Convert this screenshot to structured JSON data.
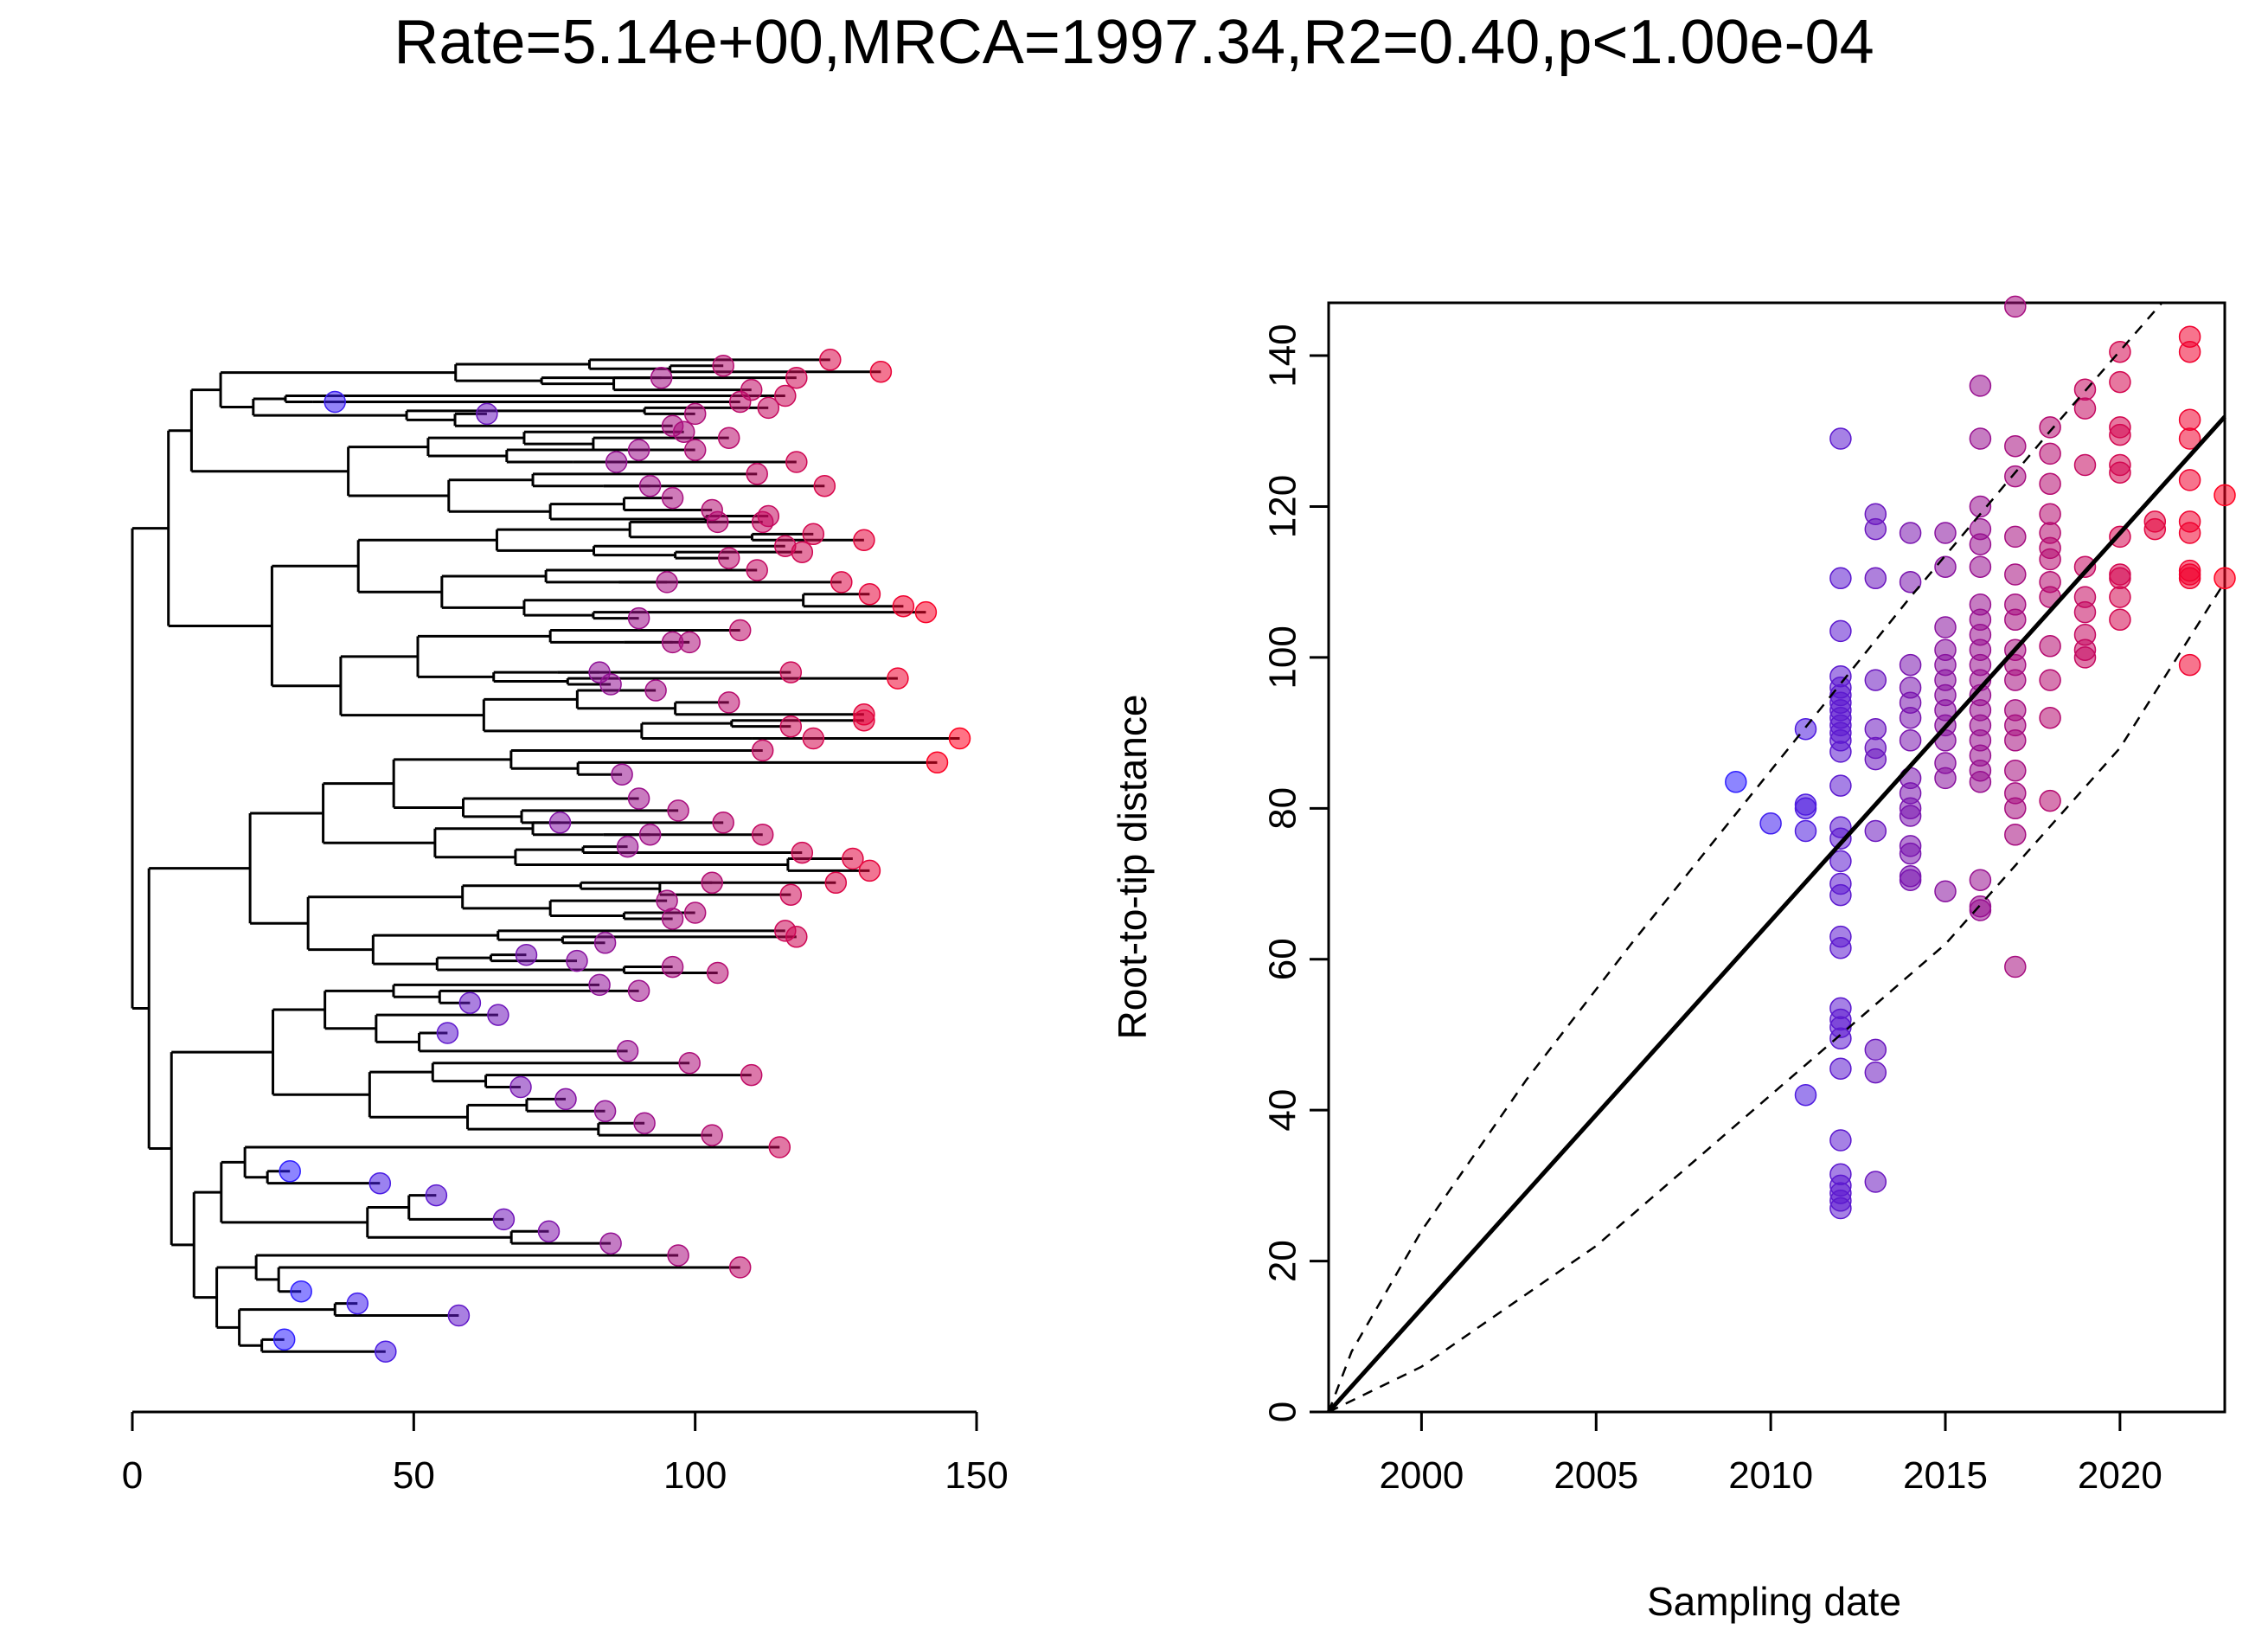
{
  "title": "Rate=5.14e+00,MRCA=1997.34,R2=0.40,p<1.00e-04",
  "colors": {
    "early": "#3020ff",
    "late": "#ff0020",
    "axis": "#000000"
  },
  "chart_data": [
    {
      "type": "tree",
      "xlabel": "",
      "ylabel": "",
      "xlim": [
        0,
        150
      ],
      "xticks": [
        "0",
        "50",
        "100",
        "150"
      ],
      "xtick_values": [
        0,
        50,
        100,
        150
      ],
      "tips": [
        [
          100,
          0.12
        ],
        [
          116,
          0.09
        ],
        [
          118,
          0.06
        ],
        [
          108,
          0.1
        ],
        [
          96,
          0.14
        ],
        [
          105,
          0.04
        ],
        [
          110,
          0.08
        ],
        [
          124,
          0.03
        ],
        [
          113,
          0.11
        ],
        [
          98,
          0.15
        ],
        [
          94,
          0.06
        ],
        [
          90,
          0.18
        ],
        [
          106,
          0.16
        ],
        [
          133,
          0.05
        ],
        [
          36,
          0.1
        ],
        [
          63,
          0.12
        ],
        [
          86,
          0.2
        ],
        [
          100,
          0.18
        ],
        [
          111,
          0.22
        ],
        [
          118,
          0.2
        ],
        [
          123,
          0.24
        ],
        [
          92,
          0.24
        ],
        [
          96,
          0.26
        ],
        [
          103,
          0.28
        ],
        [
          112,
          0.3
        ],
        [
          121,
          0.32
        ],
        [
          104,
          0.3
        ],
        [
          113,
          0.29
        ],
        [
          130,
          0.33
        ],
        [
          119,
          0.35
        ],
        [
          95,
          0.4
        ],
        [
          106,
          0.36
        ],
        [
          111,
          0.38
        ],
        [
          116,
          0.34
        ],
        [
          126,
          0.4
        ],
        [
          131,
          0.42
        ],
        [
          137,
          0.44
        ],
        [
          141,
          0.45
        ],
        [
          90,
          0.46
        ],
        [
          108,
          0.48
        ],
        [
          99,
          0.5
        ],
        [
          83,
          0.55
        ],
        [
          96,
          0.5
        ],
        [
          117,
          0.55
        ],
        [
          136,
          0.56
        ],
        [
          85,
          0.57
        ],
        [
          130,
          0.62
        ],
        [
          143,
          0.7
        ],
        [
          147,
          0.66
        ],
        [
          112,
          0.68
        ],
        [
          106,
          0.6
        ],
        [
          117,
          0.64
        ],
        [
          121,
          0.66
        ],
        [
          130,
          0.63
        ],
        [
          93,
          0.58
        ],
        [
          87,
          0.72
        ],
        [
          90,
          0.76
        ],
        [
          76,
          0.8
        ],
        [
          97,
          0.78
        ],
        [
          105,
          0.8
        ],
        [
          112,
          0.82
        ],
        [
          88,
          0.84
        ],
        [
          92,
          0.82
        ],
        [
          119,
          0.85
        ],
        [
          128,
          0.86
        ],
        [
          131,
          0.88
        ],
        [
          125,
          0.9
        ],
        [
          117,
          0.92
        ],
        [
          103,
          0.9
        ],
        [
          95,
          0.93
        ],
        [
          96,
          0.96
        ],
        [
          100,
          0.95
        ],
        [
          116,
          0.98
        ],
        [
          118,
          0.99
        ],
        [
          84,
          1.0
        ],
        [
          70,
          1.02
        ],
        [
          79,
          1.03
        ],
        [
          96,
          1.04
        ],
        [
          104,
          1.05
        ],
        [
          83,
          1.07
        ],
        [
          90,
          1.08
        ],
        [
          60,
          1.1
        ],
        [
          65,
          1.12
        ],
        [
          56,
          1.15
        ],
        [
          88,
          1.18
        ],
        [
          99,
          1.2
        ],
        [
          110,
          1.22
        ],
        [
          69,
          1.24
        ],
        [
          77,
          1.26
        ],
        [
          84,
          1.28
        ],
        [
          91,
          1.3
        ],
        [
          103,
          1.32
        ],
        [
          115,
          1.34
        ],
        [
          28,
          1.38
        ],
        [
          44,
          1.4
        ],
        [
          54,
          1.42
        ],
        [
          66,
          1.46
        ],
        [
          74,
          1.48
        ],
        [
          85,
          1.5
        ],
        [
          97,
          1.52
        ],
        [
          108,
          1.54
        ],
        [
          30,
          1.58
        ],
        [
          40,
          1.6
        ],
        [
          58,
          1.62
        ],
        [
          27,
          1.66
        ],
        [
          45,
          1.68
        ]
      ]
    },
    {
      "type": "scatter",
      "xlabel": "Sampling date",
      "ylabel": "Root-to-tip distance",
      "xlim": [
        1997.34,
        2023
      ],
      "ylim": [
        0,
        147
      ],
      "xticks": [
        "2000",
        "2005",
        "2010",
        "2015",
        "2020"
      ],
      "xtick_values": [
        2000,
        2005,
        2010,
        2015,
        2020
      ],
      "yticks": [
        "0",
        "20",
        "40",
        "60",
        "80",
        "100",
        "120",
        "140"
      ],
      "ytick_values": [
        0,
        20,
        40,
        60,
        80,
        100,
        120,
        140
      ],
      "regression": {
        "rate": 5.14,
        "mrca": 1997.34,
        "x": [
          1997.34,
          2023
        ],
        "y": [
          0,
          131.9
        ]
      },
      "prediction_bands": {
        "upper": {
          "x": [
            1997.34,
            1998,
            2000,
            2003,
            2006,
            2010,
            2014,
            2018,
            2021.2
          ],
          "y": [
            0,
            8,
            24,
            44,
            62,
            85,
            108,
            130,
            147
          ]
        },
        "lower": {
          "x": [
            1997.34,
            2000,
            2005,
            2010,
            2015,
            2020,
            2023
          ],
          "y": [
            0,
            6,
            22,
            42,
            62,
            88,
            110
          ]
        }
      },
      "points": [
        [
          2009,
          83.5
        ],
        [
          2010,
          78
        ],
        [
          2011,
          90.5
        ],
        [
          2011,
          80.5
        ],
        [
          2011,
          80
        ],
        [
          2011,
          77
        ],
        [
          2011,
          42
        ],
        [
          2012,
          129
        ],
        [
          2012,
          110.5
        ],
        [
          2012,
          103.5
        ],
        [
          2012,
          97.5
        ],
        [
          2012,
          96
        ],
        [
          2012,
          95
        ],
        [
          2012,
          94
        ],
        [
          2012,
          93
        ],
        [
          2012,
          92
        ],
        [
          2012,
          91
        ],
        [
          2012,
          90
        ],
        [
          2012,
          89
        ],
        [
          2012,
          87.5
        ],
        [
          2012,
          83
        ],
        [
          2012,
          77.5
        ],
        [
          2012,
          76
        ],
        [
          2012,
          73
        ],
        [
          2012,
          70
        ],
        [
          2012,
          68.5
        ],
        [
          2012,
          63
        ],
        [
          2012,
          61.5
        ],
        [
          2012,
          53.5
        ],
        [
          2012,
          52
        ],
        [
          2012,
          51
        ],
        [
          2012,
          49.5
        ],
        [
          2012,
          45.5
        ],
        [
          2012,
          36
        ],
        [
          2012,
          31.5
        ],
        [
          2012,
          30
        ],
        [
          2012,
          29
        ],
        [
          2012,
          28
        ],
        [
          2012,
          27
        ],
        [
          2013,
          119
        ],
        [
          2013,
          117
        ],
        [
          2013,
          110.5
        ],
        [
          2013,
          97
        ],
        [
          2013,
          90.5
        ],
        [
          2013,
          88
        ],
        [
          2013,
          86.5
        ],
        [
          2013,
          77
        ],
        [
          2013,
          48
        ],
        [
          2013,
          45
        ],
        [
          2013,
          30.5
        ],
        [
          2014,
          116.5
        ],
        [
          2014,
          110
        ],
        [
          2014,
          99
        ],
        [
          2014,
          96
        ],
        [
          2014,
          94
        ],
        [
          2014,
          92
        ],
        [
          2014,
          89
        ],
        [
          2014,
          84
        ],
        [
          2014,
          82
        ],
        [
          2014,
          80
        ],
        [
          2014,
          79
        ],
        [
          2014,
          75
        ],
        [
          2014,
          74
        ],
        [
          2014,
          71
        ],
        [
          2014,
          70.5
        ],
        [
          2015,
          116.5
        ],
        [
          2015,
          112
        ],
        [
          2015,
          104
        ],
        [
          2015,
          101
        ],
        [
          2015,
          99
        ],
        [
          2015,
          97
        ],
        [
          2015,
          95
        ],
        [
          2015,
          93
        ],
        [
          2015,
          91
        ],
        [
          2015,
          89
        ],
        [
          2015,
          86
        ],
        [
          2015,
          84
        ],
        [
          2015,
          69
        ],
        [
          2016,
          136
        ],
        [
          2016,
          129
        ],
        [
          2016,
          120
        ],
        [
          2016,
          117
        ],
        [
          2016,
          115
        ],
        [
          2016,
          112
        ],
        [
          2016,
          107
        ],
        [
          2016,
          105
        ],
        [
          2016,
          103
        ],
        [
          2016,
          101
        ],
        [
          2016,
          99
        ],
        [
          2016,
          97
        ],
        [
          2016,
          95
        ],
        [
          2016,
          93
        ],
        [
          2016,
          91
        ],
        [
          2016,
          89
        ],
        [
          2016,
          87
        ],
        [
          2016,
          85
        ],
        [
          2016,
          83.5
        ],
        [
          2016,
          70.5
        ],
        [
          2016,
          67
        ],
        [
          2016,
          66.5
        ],
        [
          2017,
          146.5
        ],
        [
          2017,
          128
        ],
        [
          2017,
          124
        ],
        [
          2017,
          116
        ],
        [
          2017,
          111
        ],
        [
          2017,
          107
        ],
        [
          2017,
          105
        ],
        [
          2017,
          101
        ],
        [
          2017,
          99
        ],
        [
          2017,
          97
        ],
        [
          2017,
          93
        ],
        [
          2017,
          91
        ],
        [
          2017,
          89
        ],
        [
          2017,
          85
        ],
        [
          2017,
          82
        ],
        [
          2017,
          80
        ],
        [
          2017,
          76.5
        ],
        [
          2017,
          59
        ],
        [
          2018,
          130.5
        ],
        [
          2018,
          127
        ],
        [
          2018,
          123
        ],
        [
          2018,
          119
        ],
        [
          2018,
          116.5
        ],
        [
          2018,
          114.5
        ],
        [
          2018,
          113
        ],
        [
          2018,
          110
        ],
        [
          2018,
          108
        ],
        [
          2018,
          101.5
        ],
        [
          2018,
          97
        ],
        [
          2018,
          92
        ],
        [
          2018,
          81
        ],
        [
          2019,
          135.5
        ],
        [
          2019,
          133
        ],
        [
          2019,
          125.5
        ],
        [
          2019,
          112
        ],
        [
          2019,
          108
        ],
        [
          2019,
          106
        ],
        [
          2019,
          103
        ],
        [
          2019,
          101
        ],
        [
          2019,
          100
        ],
        [
          2020,
          140.5
        ],
        [
          2020,
          136.5
        ],
        [
          2020,
          130.5
        ],
        [
          2020,
          129.5
        ],
        [
          2020,
          125.5
        ],
        [
          2020,
          124.5
        ],
        [
          2020,
          116
        ],
        [
          2020,
          111
        ],
        [
          2020,
          110.5
        ],
        [
          2020,
          108
        ],
        [
          2020,
          105
        ],
        [
          2021,
          118
        ],
        [
          2021,
          117
        ],
        [
          2022,
          142.5
        ],
        [
          2022,
          140.5
        ],
        [
          2022,
          131.5
        ],
        [
          2022,
          129
        ],
        [
          2022,
          123.5
        ],
        [
          2022,
          118
        ],
        [
          2022,
          116.5
        ],
        [
          2022,
          111.5
        ],
        [
          2022,
          111
        ],
        [
          2022,
          110.5
        ],
        [
          2022,
          99
        ],
        [
          2023,
          121.5
        ],
        [
          2023,
          110.5
        ]
      ]
    }
  ]
}
